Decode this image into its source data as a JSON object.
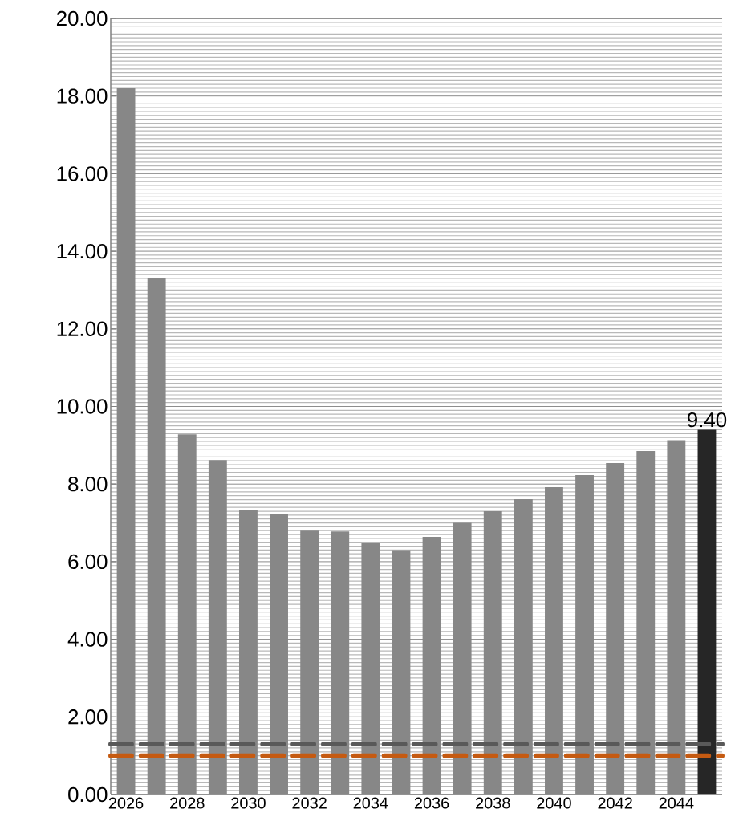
{
  "chart_data": {
    "type": "bar",
    "categories": [
      "2026",
      null,
      "2028",
      null,
      "2030",
      null,
      "2032",
      null,
      "2034",
      null,
      "2036",
      null,
      "2038",
      null,
      "2040",
      null,
      "2042",
      null,
      "2044",
      null
    ],
    "values": [
      18.2,
      13.3,
      9.28,
      8.62,
      7.32,
      7.24,
      6.8,
      6.78,
      6.48,
      6.3,
      6.64,
      7.0,
      7.3,
      7.61,
      7.92,
      8.23,
      8.54,
      8.85,
      9.13,
      9.4
    ],
    "colors": [
      "#878787",
      "#878787",
      "#878787",
      "#878787",
      "#878787",
      "#878787",
      "#878787",
      "#878787",
      "#878787",
      "#878787",
      "#878787",
      "#878787",
      "#878787",
      "#878787",
      "#878787",
      "#878787",
      "#878787",
      "#878787",
      "#878787",
      "#262626"
    ],
    "value_labels": [
      null,
      null,
      null,
      null,
      null,
      null,
      null,
      null,
      null,
      null,
      null,
      null,
      null,
      null,
      null,
      null,
      null,
      null,
      null,
      "9.40"
    ],
    "ylim": [
      0,
      20
    ],
    "yticks": [
      {
        "value": 0,
        "label": "0.00"
      },
      {
        "value": 2,
        "label": "2.00"
      },
      {
        "value": 4,
        "label": "4.00"
      },
      {
        "value": 6,
        "label": "6.00"
      },
      {
        "value": 8,
        "label": "8.00"
      },
      {
        "value": 10,
        "label": "10.00"
      },
      {
        "value": 12,
        "label": "12.00"
      },
      {
        "value": 14,
        "label": "14.00"
      },
      {
        "value": 16,
        "label": "16.00"
      },
      {
        "value": 18,
        "label": "18.00"
      },
      {
        "value": 20,
        "label": "20.00"
      }
    ],
    "ref_lines": [
      {
        "axis": "y",
        "value": 1.3,
        "color": "#595959",
        "line_style": "dashed"
      },
      {
        "axis": "y",
        "value": 1.0,
        "color": "#c55a11",
        "line_style": "dashed"
      }
    ],
    "grid": "y"
  }
}
